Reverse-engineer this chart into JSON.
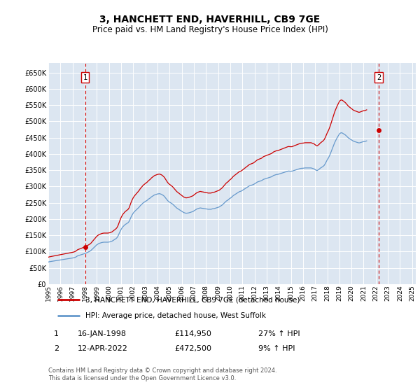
{
  "title": "3, HANCHETT END, HAVERHILL, CB9 7GE",
  "subtitle": "Price paid vs. HM Land Registry's House Price Index (HPI)",
  "ylim": [
    0,
    680000
  ],
  "yticks": [
    0,
    50000,
    100000,
    150000,
    200000,
    250000,
    300000,
    350000,
    400000,
    450000,
    500000,
    550000,
    600000,
    650000
  ],
  "plot_bg": "#dce6f1",
  "grid_color": "#ffffff",
  "legend_label_red": "3, HANCHETT END, HAVERHILL, CB9 7GE (detached house)",
  "legend_label_blue": "HPI: Average price, detached house, West Suffolk",
  "annotation1_label": "1",
  "annotation1_date": "16-JAN-1998",
  "annotation1_price": "£114,950",
  "annotation1_hpi": "27% ↑ HPI",
  "annotation2_label": "2",
  "annotation2_date": "12-APR-2022",
  "annotation2_price": "£472,500",
  "annotation2_hpi": "9% ↑ HPI",
  "footer": "Contains HM Land Registry data © Crown copyright and database right 2024.\nThis data is licensed under the Open Government Licence v3.0.",
  "red_color": "#cc0000",
  "blue_color": "#6699cc",
  "sale1_x": 1998.04,
  "sale1_y": 114950,
  "sale2_x": 2022.25,
  "sale2_y": 472500,
  "xlim_left": 1995.0,
  "xlim_right": 2025.3,
  "xticks": [
    1995,
    1996,
    1997,
    1998,
    1999,
    2000,
    2001,
    2002,
    2003,
    2004,
    2005,
    2006,
    2007,
    2008,
    2009,
    2010,
    2011,
    2012,
    2013,
    2014,
    2015,
    2016,
    2017,
    2018,
    2019,
    2020,
    2021,
    2022,
    2023,
    2024,
    2025
  ],
  "hpi_monthly": [
    68000,
    69000,
    69500,
    70000,
    70500,
    71000,
    71500,
    72000,
    72500,
    73000,
    73500,
    74000,
    74500,
    75000,
    75500,
    76000,
    76500,
    77000,
    77500,
    78000,
    78500,
    79000,
    79500,
    80000,
    80500,
    81000,
    82000,
    83000,
    85000,
    87000,
    88000,
    89000,
    90000,
    91000,
    92000,
    93000,
    94000,
    95000,
    96500,
    98000,
    99500,
    101000,
    103000,
    106000,
    109000,
    112000,
    115000,
    118000,
    121000,
    123000,
    125000,
    126000,
    127000,
    128000,
    128500,
    129000,
    129000,
    129000,
    129000,
    129000,
    129500,
    130000,
    131000,
    132000,
    134000,
    136000,
    138000,
    140000,
    143000,
    148000,
    155000,
    162000,
    168000,
    173000,
    177000,
    180000,
    183000,
    185000,
    187000,
    189000,
    193000,
    200000,
    207000,
    213000,
    218000,
    222000,
    225000,
    228000,
    231000,
    234000,
    237000,
    241000,
    244000,
    247000,
    250000,
    252000,
    254000,
    256000,
    258000,
    261000,
    263000,
    265000,
    268000,
    270000,
    272000,
    274000,
    275000,
    276000,
    277000,
    277500,
    278000,
    277000,
    276000,
    274000,
    272000,
    269000,
    265000,
    261000,
    257000,
    254000,
    252000,
    250000,
    248000,
    246000,
    243000,
    240000,
    237000,
    234000,
    232000,
    230000,
    228000,
    226000,
    224000,
    222000,
    220000,
    219000,
    218000,
    218000,
    218500,
    219000,
    220000,
    221000,
    222000,
    223000,
    225000,
    227000,
    229000,
    231000,
    232000,
    233000,
    234000,
    234000,
    233000,
    233000,
    232000,
    232000,
    231000,
    231000,
    230000,
    230000,
    230000,
    230000,
    231000,
    232000,
    232000,
    233000,
    234000,
    235000,
    236000,
    237000,
    239000,
    241000,
    243000,
    246000,
    249000,
    252000,
    255000,
    257000,
    259000,
    262000,
    264000,
    266000,
    269000,
    272000,
    274000,
    276000,
    278000,
    280000,
    282000,
    284000,
    285000,
    286000,
    288000,
    290000,
    292000,
    294000,
    296000,
    298000,
    300000,
    302000,
    303000,
    304000,
    305000,
    306000,
    308000,
    310000,
    312000,
    314000,
    315000,
    316000,
    317000,
    318000,
    320000,
    322000,
    323000,
    324000,
    325000,
    326000,
    327000,
    328000,
    329000,
    330000,
    332000,
    334000,
    335000,
    336000,
    337000,
    337000,
    338000,
    339000,
    340000,
    341000,
    342000,
    343000,
    344000,
    345000,
    346000,
    347000,
    347500,
    347000,
    347000,
    347000,
    348000,
    349000,
    350000,
    351000,
    352000,
    353000,
    354000,
    355000,
    355500,
    356000,
    356000,
    356500,
    357000,
    357000,
    357000,
    357000,
    357000,
    357000,
    357000,
    356000,
    355000,
    354000,
    352000,
    350000,
    349000,
    351000,
    353000,
    356000,
    358000,
    360000,
    362000,
    365000,
    370000,
    376000,
    382000,
    387000,
    393000,
    400000,
    408000,
    416000,
    424000,
    432000,
    439000,
    445000,
    451000,
    456000,
    461000,
    464000,
    465000,
    464000,
    462000,
    460000,
    458000,
    455000,
    452000,
    449000,
    447000,
    445000,
    443000,
    441000,
    439000,
    438000,
    437000,
    436000,
    435000,
    434000,
    434000,
    435000,
    436000,
    437000,
    438000,
    438000,
    439000,
    440000
  ]
}
